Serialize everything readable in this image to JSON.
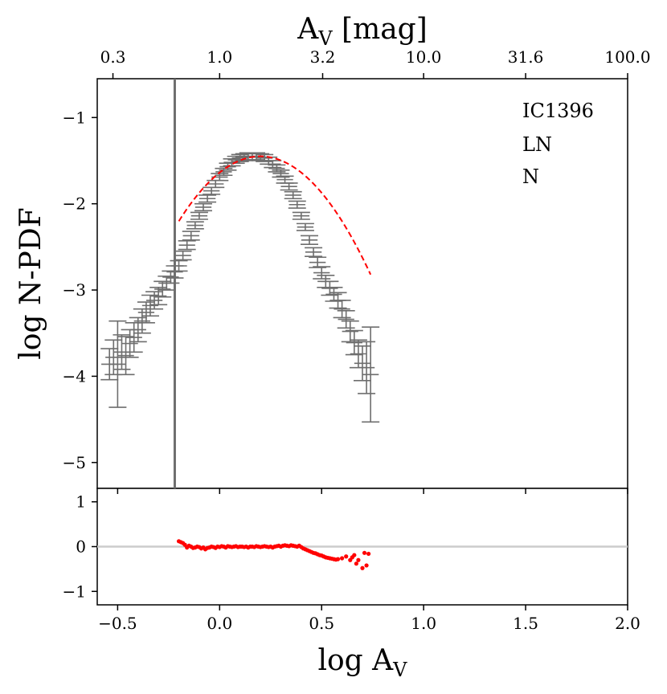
{
  "chart_data": [
    {
      "id": "main",
      "type": "scatter",
      "title": "",
      "xlabel": "log A_V",
      "ylabel": "log N-PDF",
      "top_xlabel_main": "A",
      "top_xlabel_sub": "V",
      "top_xlabel_unit": " [mag]",
      "ylabel_text": "log N-PDF",
      "xlim": [
        -0.6,
        2.0
      ],
      "ylim": [
        -5.3,
        -0.55
      ],
      "yticks": [
        -1,
        -2,
        -3,
        -4,
        -5
      ],
      "ytick_labels": [
        "−1",
        "−2",
        "−3",
        "−4",
        "−5"
      ],
      "top_xticks": [
        -0.523,
        0.0,
        0.505,
        1.0,
        1.5,
        2.0
      ],
      "top_xtick_labels": [
        "0.3",
        "1.0",
        "3.2",
        "10.0",
        "31.6",
        "100.0"
      ],
      "vline_x": -0.22,
      "vline_color": "#6e6e6e",
      "annotations": [
        "IC1396",
        "LN",
        "N"
      ],
      "data_color": "#6e6e6e",
      "fit_color": "#ff0000",
      "bin_halfwidth": 0.04,
      "x": [
        -0.54,
        -0.52,
        -0.5,
        -0.48,
        -0.46,
        -0.44,
        -0.42,
        -0.4,
        -0.38,
        -0.36,
        -0.34,
        -0.32,
        -0.3,
        -0.28,
        -0.26,
        -0.24,
        -0.22,
        -0.2,
        -0.18,
        -0.16,
        -0.14,
        -0.12,
        -0.1,
        -0.08,
        -0.06,
        -0.04,
        -0.02,
        0.0,
        0.02,
        0.04,
        0.06,
        0.08,
        0.1,
        0.12,
        0.14,
        0.16,
        0.18,
        0.2,
        0.22,
        0.24,
        0.26,
        0.28,
        0.3,
        0.32,
        0.34,
        0.36,
        0.38,
        0.4,
        0.42,
        0.44,
        0.46,
        0.48,
        0.5,
        0.52,
        0.54,
        0.56,
        0.58,
        0.6,
        0.62,
        0.64,
        0.66,
        0.68,
        0.7,
        0.72,
        0.74
      ],
      "y": [
        -3.86,
        -3.78,
        -3.86,
        -3.72,
        -3.76,
        -3.62,
        -3.55,
        -3.46,
        -3.36,
        -3.26,
        -3.18,
        -3.12,
        -3.07,
        -2.99,
        -2.92,
        -2.85,
        -2.79,
        -2.72,
        -2.6,
        -2.48,
        -2.37,
        -2.25,
        -2.14,
        -2.04,
        -1.94,
        -1.85,
        -1.77,
        -1.69,
        -1.63,
        -1.57,
        -1.52,
        -1.49,
        -1.47,
        -1.46,
        -1.45,
        -1.45,
        -1.45,
        -1.46,
        -1.47,
        -1.5,
        -1.54,
        -1.59,
        -1.65,
        -1.72,
        -1.8,
        -1.9,
        -2.01,
        -2.14,
        -2.27,
        -2.42,
        -2.56,
        -2.68,
        -2.8,
        -2.9,
        -2.98,
        -3.05,
        -3.12,
        -3.22,
        -3.34,
        -3.48,
        -3.61,
        -3.74,
        -3.85,
        -3.9,
        -3.98
      ],
      "y_err": [
        0.18,
        0.2,
        0.5,
        0.2,
        0.22,
        0.16,
        0.17,
        0.14,
        0.14,
        0.12,
        0.12,
        0.1,
        0.1,
        0.09,
        0.08,
        0.07,
        0.07,
        0.06,
        0.05,
        0.05,
        0.05,
        0.04,
        0.04,
        0.04,
        0.04,
        0.04,
        0.04,
        0.04,
        0.04,
        0.04,
        0.04,
        0.04,
        0.04,
        0.04,
        0.04,
        0.04,
        0.04,
        0.04,
        0.04,
        0.04,
        0.04,
        0.04,
        0.04,
        0.04,
        0.04,
        0.04,
        0.04,
        0.04,
        0.04,
        0.05,
        0.05,
        0.06,
        0.07,
        0.07,
        0.08,
        0.08,
        0.09,
        0.1,
        0.1,
        0.12,
        0.14,
        0.16,
        0.2,
        0.3,
        0.55
      ],
      "fit_lognormal": {
        "x_range": [
          -0.2,
          0.74
        ],
        "peak_x": 0.2,
        "peak_y": -1.45,
        "curvature": 4.7
      }
    },
    {
      "id": "residual",
      "type": "scatter",
      "title": "",
      "xlabel": "log A_V",
      "xlabel_main": "log A",
      "xlabel_sub": "V",
      "ylabel": "",
      "xlim": [
        -0.6,
        2.0
      ],
      "ylim": [
        -1.3,
        1.3
      ],
      "xticks": [
        -0.5,
        0.0,
        0.5,
        1.0,
        1.5,
        2.0
      ],
      "xtick_labels": [
        "−0.5",
        "0.0",
        "0.5",
        "1.0",
        "1.5",
        "2.0"
      ],
      "yticks": [
        1,
        0,
        -1
      ],
      "ytick_labels": [
        "1",
        "0",
        "−1"
      ],
      "zero_line_color": "#cccccc",
      "point_color": "#ff0000",
      "x": [
        -0.2,
        -0.19,
        -0.18,
        -0.17,
        -0.16,
        -0.15,
        -0.14,
        -0.13,
        -0.12,
        -0.11,
        -0.1,
        -0.09,
        -0.08,
        -0.07,
        -0.06,
        -0.05,
        -0.04,
        -0.03,
        -0.02,
        -0.01,
        0.0,
        0.01,
        0.02,
        0.03,
        0.04,
        0.05,
        0.06,
        0.07,
        0.08,
        0.09,
        0.1,
        0.11,
        0.12,
        0.13,
        0.14,
        0.15,
        0.16,
        0.17,
        0.18,
        0.19,
        0.2,
        0.21,
        0.22,
        0.23,
        0.24,
        0.25,
        0.26,
        0.27,
        0.28,
        0.29,
        0.3,
        0.31,
        0.32,
        0.33,
        0.34,
        0.35,
        0.36,
        0.37,
        0.38,
        0.39,
        0.4,
        0.41,
        0.42,
        0.43,
        0.44,
        0.45,
        0.46,
        0.47,
        0.48,
        0.49,
        0.5,
        0.51,
        0.52,
        0.53,
        0.54,
        0.55,
        0.56,
        0.57,
        0.58,
        0.6,
        0.62,
        0.64,
        0.65,
        0.66,
        0.67,
        0.68,
        0.7,
        0.71,
        0.72,
        0.73
      ],
      "y": [
        0.12,
        0.1,
        0.08,
        0.04,
        -0.02,
        0.02,
        0.0,
        -0.03,
        -0.02,
        0.0,
        -0.01,
        -0.04,
        -0.02,
        -0.06,
        -0.03,
        -0.02,
        0.0,
        -0.01,
        -0.03,
        0.0,
        -0.01,
        0.01,
        0.0,
        -0.02,
        0.01,
        0.0,
        -0.01,
        0.0,
        0.01,
        -0.01,
        0.0,
        0.0,
        -0.01,
        0.0,
        -0.02,
        0.0,
        0.0,
        -0.01,
        0.01,
        0.0,
        -0.01,
        0.0,
        0.01,
        0.0,
        -0.01,
        0.0,
        -0.02,
        0.0,
        0.01,
        0.02,
        0.0,
        0.02,
        0.03,
        0.02,
        0.01,
        0.03,
        0.02,
        0.01,
        0.0,
        0.02,
        -0.01,
        -0.04,
        -0.06,
        -0.08,
        -0.1,
        -0.12,
        -0.14,
        -0.15,
        -0.17,
        -0.19,
        -0.2,
        -0.22,
        -0.24,
        -0.25,
        -0.26,
        -0.27,
        -0.28,
        -0.29,
        -0.28,
        -0.26,
        -0.22,
        -0.3,
        -0.24,
        -0.19,
        -0.38,
        -0.3,
        -0.48,
        -0.14,
        -0.42,
        -0.16
      ]
    }
  ]
}
